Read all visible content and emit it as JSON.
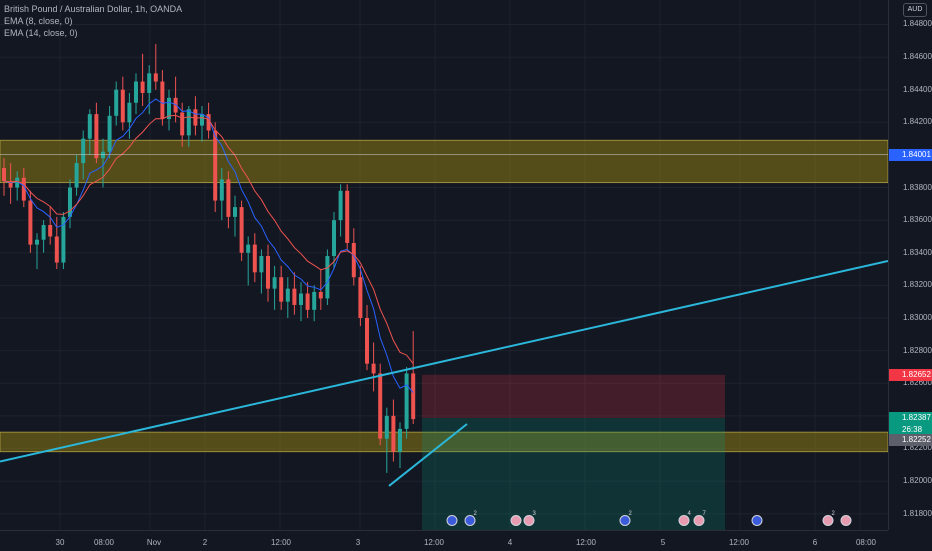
{
  "legend": {
    "title": "British Pound / Australian Dollar, 1h, OANDA",
    "ema8": "EMA (8, close, 0)",
    "ema14": "EMA (14, close, 0)"
  },
  "currency_button": "AUD",
  "price_axis": {
    "ticks": [
      "1.84800",
      "1.84600",
      "1.84400",
      "1.84200",
      "1.83800",
      "1.83600",
      "1.83400",
      "1.83200",
      "1.83000",
      "1.82800",
      "1.82600",
      "1.82200",
      "1.82000",
      "1.81800"
    ],
    "labels": [
      {
        "text": "1.84001",
        "color": "#2962ff"
      },
      {
        "text": "1.82652",
        "color": "#f23645"
      },
      {
        "text": "1.82387",
        "color": "#089981"
      },
      {
        "text": "26:38",
        "color": "#089981"
      },
      {
        "text": "1.82252",
        "color": "#5d606b"
      }
    ]
  },
  "time_axis": {
    "labels": [
      "30",
      "08:00",
      "Nov",
      "2",
      "12:00",
      "3",
      "12:00",
      "4",
      "12:00",
      "5",
      "12:00",
      "6",
      "08:00"
    ]
  },
  "events": [
    {
      "type": "earn",
      "count": ""
    },
    {
      "type": "earn",
      "count": "2"
    },
    {
      "type": "div",
      "count": ""
    },
    {
      "type": "div",
      "count": "3"
    },
    {
      "type": "earn",
      "count": "2"
    },
    {
      "type": "div",
      "count": "4"
    },
    {
      "type": "div",
      "count": "7"
    },
    {
      "type": "earn",
      "count": ""
    },
    {
      "type": "div",
      "count": "2"
    },
    {
      "type": "div",
      "count": ""
    }
  ],
  "colors": {
    "background": "#131722",
    "bull": "#26a69a",
    "bear": "#ef5350",
    "ema8": "#2962ff",
    "ema14": "#ef5350",
    "zone": "#8a7a14",
    "trendline": "#2bb7da",
    "stop": "#f23645",
    "target": "#089981"
  },
  "chart_data": {
    "type": "candlestick",
    "ylim": [
      1.817,
      1.8495
    ],
    "zones": [
      [
        1.8383,
        1.8409
      ],
      [
        1.8218,
        1.823
      ]
    ],
    "short_position": {
      "entry": 1.82387,
      "stop": 1.82652,
      "target": 1.817
    },
    "candles": [
      [
        1.8392,
        1.8398,
        1.8375,
        1.8384
      ],
      [
        1.8384,
        1.8395,
        1.837,
        1.838
      ],
      [
        1.838,
        1.839,
        1.8372,
        1.8386
      ],
      [
        1.8386,
        1.8392,
        1.8368,
        1.8372
      ],
      [
        1.8372,
        1.8378,
        1.834,
        1.8345
      ],
      [
        1.8345,
        1.8352,
        1.833,
        1.8348
      ],
      [
        1.8348,
        1.836,
        1.834,
        1.8357
      ],
      [
        1.8357,
        1.8368,
        1.8345,
        1.835
      ],
      [
        1.835,
        1.8362,
        1.833,
        1.8334
      ],
      [
        1.8334,
        1.8365,
        1.833,
        1.8362
      ],
      [
        1.8362,
        1.8385,
        1.8355,
        1.838
      ],
      [
        1.838,
        1.84,
        1.8375,
        1.8395
      ],
      [
        1.8395,
        1.8415,
        1.8385,
        1.841
      ],
      [
        1.841,
        1.8428,
        1.84,
        1.8425
      ],
      [
        1.8425,
        1.8432,
        1.8395,
        1.8398
      ],
      [
        1.8398,
        1.841,
        1.838,
        1.8402
      ],
      [
        1.8402,
        1.843,
        1.8398,
        1.8424
      ],
      [
        1.8424,
        1.8445,
        1.8418,
        1.844
      ],
      [
        1.844,
        1.8448,
        1.8415,
        1.842
      ],
      [
        1.842,
        1.8438,
        1.841,
        1.8432
      ],
      [
        1.8432,
        1.845,
        1.8425,
        1.8445
      ],
      [
        1.8445,
        1.8462,
        1.843,
        1.8438
      ],
      [
        1.8438,
        1.8455,
        1.8425,
        1.845
      ],
      [
        1.845,
        1.8468,
        1.844,
        1.8445
      ],
      [
        1.8445,
        1.8452,
        1.8418,
        1.8422
      ],
      [
        1.8422,
        1.844,
        1.8415,
        1.8435
      ],
      [
        1.8435,
        1.8448,
        1.842,
        1.8426
      ],
      [
        1.8426,
        1.8432,
        1.8405,
        1.8412
      ],
      [
        1.8412,
        1.843,
        1.8405,
        1.8428
      ],
      [
        1.8428,
        1.8436,
        1.8412,
        1.8418
      ],
      [
        1.8418,
        1.843,
        1.8408,
        1.8425
      ],
      [
        1.8425,
        1.8432,
        1.841,
        1.8415
      ],
      [
        1.8415,
        1.842,
        1.8365,
        1.8372
      ],
      [
        1.8372,
        1.8392,
        1.836,
        1.8385
      ],
      [
        1.8385,
        1.839,
        1.8355,
        1.8362
      ],
      [
        1.8362,
        1.8375,
        1.835,
        1.8368
      ],
      [
        1.8368,
        1.8372,
        1.8335,
        1.834
      ],
      [
        1.834,
        1.835,
        1.832,
        1.8345
      ],
      [
        1.8345,
        1.8352,
        1.8322,
        1.8328
      ],
      [
        1.8328,
        1.8342,
        1.8315,
        1.8338
      ],
      [
        1.8338,
        1.8345,
        1.831,
        1.8318
      ],
      [
        1.8318,
        1.8332,
        1.8305,
        1.8325
      ],
      [
        1.8325,
        1.8332,
        1.8305,
        1.831
      ],
      [
        1.831,
        1.8325,
        1.83,
        1.8318
      ],
      [
        1.8318,
        1.8328,
        1.8302,
        1.8308
      ],
      [
        1.8308,
        1.8322,
        1.8298,
        1.8315
      ],
      [
        1.8315,
        1.8322,
        1.83,
        1.8305
      ],
      [
        1.8305,
        1.832,
        1.8298,
        1.8316
      ],
      [
        1.8316,
        1.833,
        1.8305,
        1.8312
      ],
      [
        1.8312,
        1.8342,
        1.8308,
        1.8338
      ],
      [
        1.8338,
        1.8365,
        1.833,
        1.836
      ],
      [
        1.836,
        1.8382,
        1.835,
        1.8378
      ],
      [
        1.8378,
        1.8382,
        1.8342,
        1.8346
      ],
      [
        1.8346,
        1.8355,
        1.832,
        1.8325
      ],
      [
        1.8325,
        1.8332,
        1.8295,
        1.83
      ],
      [
        1.83,
        1.8308,
        1.8268,
        1.8272
      ],
      [
        1.8272,
        1.8285,
        1.8255,
        1.8266
      ],
      [
        1.8266,
        1.8272,
        1.8222,
        1.8226
      ],
      [
        1.8226,
        1.8245,
        1.8205,
        1.824
      ],
      [
        1.824,
        1.825,
        1.8212,
        1.8218
      ],
      [
        1.8218,
        1.8236,
        1.8208,
        1.8232
      ],
      [
        1.8232,
        1.827,
        1.8226,
        1.8266
      ],
      [
        1.8266,
        1.8292,
        1.8235,
        1.8238
      ]
    ]
  }
}
